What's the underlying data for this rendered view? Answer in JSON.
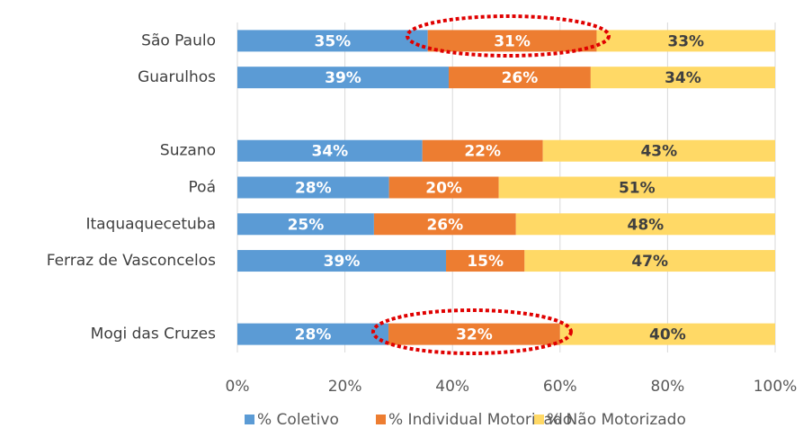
{
  "chart_data": {
    "type": "stacked-bar-horizontal",
    "categories": [
      "São Paulo",
      "Guarulhos",
      null,
      "Suzano",
      "Poá",
      "Itaquaquecetuba",
      "Ferraz de Vasconcelos",
      null,
      "Mogi das Cruzes"
    ],
    "series": [
      {
        "name": "% Coletivo",
        "color": "#5b9bd5",
        "values": [
          35.4,
          39.3,
          null,
          34.4,
          28.2,
          25.4,
          38.8,
          null,
          28.1
        ],
        "value_labels": [
          "35%",
          "39%",
          null,
          "34%",
          "28%",
          "25%",
          "39%",
          null,
          "28%"
        ]
      },
      {
        "name": "% Individual Motorizado",
        "color": "#ed7d31",
        "values": [
          31.4,
          26.4,
          null,
          22.4,
          20.4,
          26.4,
          14.6,
          null,
          31.9
        ],
        "value_labels": [
          "31%",
          "26%",
          null,
          "22%",
          "20%",
          "26%",
          "15%",
          null,
          "32%"
        ]
      },
      {
        "name": "% Não Motorizado",
        "color": "#ffd966",
        "values": [
          33.2,
          34.3,
          null,
          43.2,
          51.4,
          48.2,
          46.6,
          null,
          40.0
        ],
        "value_labels": [
          "33%",
          "34%",
          null,
          "43%",
          "51%",
          "48%",
          "47%",
          null,
          "40%"
        ]
      }
    ],
    "xlim": [
      0,
      100
    ],
    "xticks": [
      {
        "value": 0,
        "label": "0%"
      },
      {
        "value": 20,
        "label": "20%"
      },
      {
        "value": 40,
        "label": "40%"
      },
      {
        "value": 60,
        "label": "60%"
      },
      {
        "value": 80,
        "label": "80%"
      },
      {
        "value": 100,
        "label": "100%"
      }
    ],
    "grid": true
  }
}
